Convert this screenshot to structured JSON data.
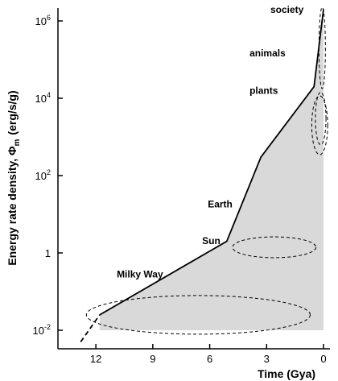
{
  "chart_data": {
    "type": "line",
    "title": "",
    "xlabel": "Time (Gya)",
    "ylabel_main": "Energy rate density, Φ",
    "ylabel_sub": "m",
    "ylabel_unit": "(erg/s/g)",
    "x_reversed": true,
    "xlim": [
      14,
      0
    ],
    "ylim": [
      0.007,
      4000000
    ],
    "y_scale": "log",
    "x_ticks": [
      {
        "value": 12,
        "label": "12"
      },
      {
        "value": 9,
        "label": "9"
      },
      {
        "value": 6,
        "label": "6"
      },
      {
        "value": 3,
        "label": "3"
      },
      {
        "value": 0,
        "label": "0"
      }
    ],
    "y_ticks": [
      {
        "value": 0.01,
        "base": "10",
        "exp": "-2"
      },
      {
        "value": 1,
        "base": "1",
        "exp": ""
      },
      {
        "value": 100,
        "base": "10",
        "exp": "2"
      },
      {
        "value": 10000,
        "base": "10",
        "exp": "4"
      },
      {
        "value": 1000000,
        "base": "10",
        "exp": "6"
      }
    ],
    "series": [
      {
        "style": "solid",
        "points": [
          {
            "x": 11.8,
            "y": 0.025
          },
          {
            "x": 5.1,
            "y": 2
          },
          {
            "x": 3.3,
            "y": 300
          },
          {
            "x": 0.5,
            "y": 20000
          },
          {
            "x": 0.0,
            "y": 2000000
          }
        ]
      },
      {
        "style": "dashed",
        "points": [
          {
            "x": 12.8,
            "y": 0.005
          },
          {
            "x": 11.8,
            "y": 0.025
          }
        ]
      }
    ],
    "shaded_region": {
      "baseline": 0.01,
      "points": [
        {
          "x": 11.8,
          "y": 0.025
        },
        {
          "x": 5.1,
          "y": 2
        },
        {
          "x": 3.3,
          "y": 300
        },
        {
          "x": 0.5,
          "y": 20000
        },
        {
          "x": 0.0,
          "y": 2000000
        }
      ]
    },
    "ellipses": [
      {
        "cx": 6.6,
        "cy": 0.025,
        "rx": 5.9,
        "ry_decades": 0.5
      },
      {
        "cx": 2.6,
        "cy": 1.4,
        "rx": 2.2,
        "ry_decades": 0.27
      },
      {
        "cx": 0.2,
        "cy": 2000,
        "rx": 0.42,
        "ry_decades": 0.76
      },
      {
        "cx": 0.15,
        "cy": 3000,
        "rx": 0.28,
        "ry_decades": 0.68
      },
      {
        "cx": 0.07,
        "cy": 200000,
        "rx": 0.17,
        "ry_decades": 1.05
      }
    ],
    "annotations": [
      {
        "text": "society",
        "x": 2.8,
        "y": 1600000
      },
      {
        "text": "animals",
        "x": 3.9,
        "y": 120000
      },
      {
        "text": "plants",
        "x": 3.9,
        "y": 13000
      },
      {
        "text": "Earth",
        "x": 6.1,
        "y": 15
      },
      {
        "text": "Sun",
        "x": 6.4,
        "y": 1.7
      },
      {
        "text": "Milky Way",
        "x": 10.9,
        "y": 0.23
      }
    ]
  }
}
